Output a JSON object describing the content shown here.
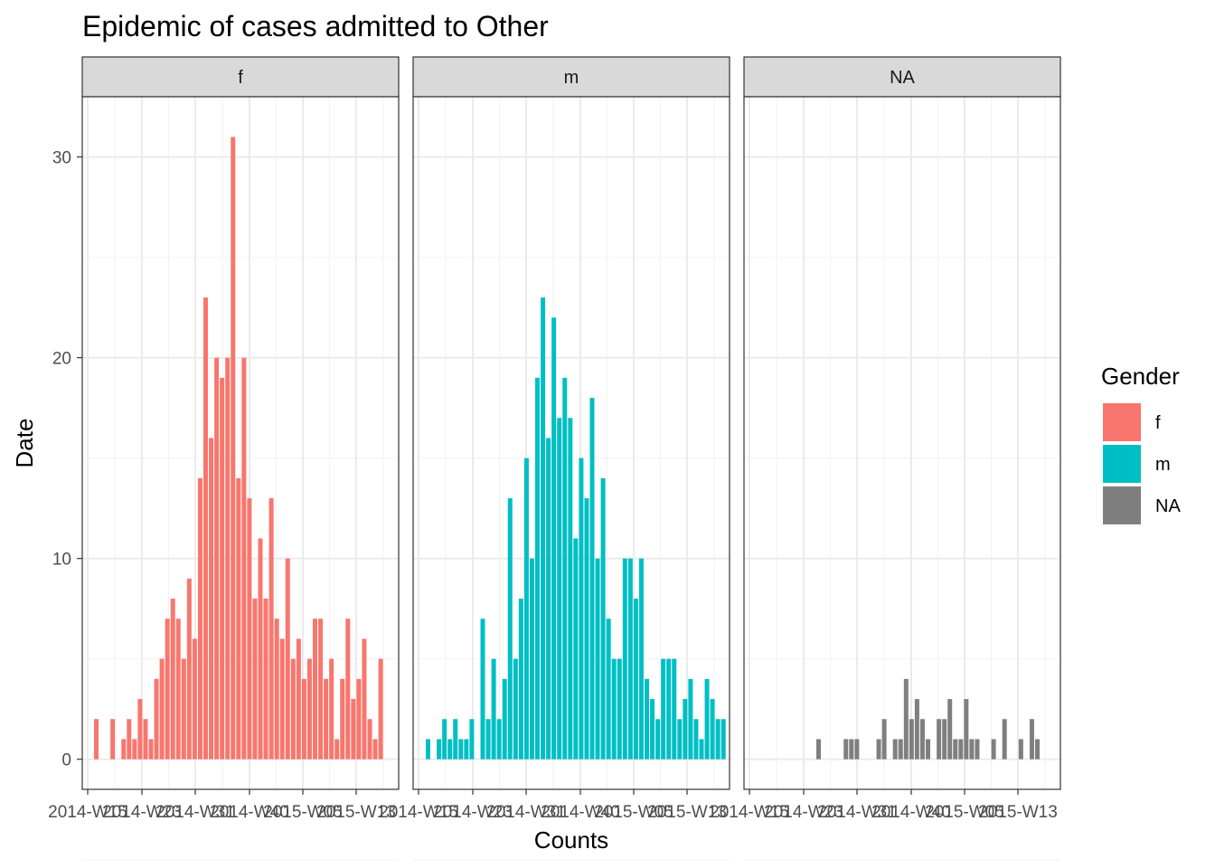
{
  "chart_data": {
    "type": "bar",
    "title": "Epidemic of cases admitted to Other",
    "xlabel": "Counts",
    "ylabel": "Date",
    "ylim": [
      -1.5,
      33
    ],
    "y_ticks": [
      0,
      10,
      20,
      30
    ],
    "x_tick_labels": [
      "2014-W15",
      "2014-W23",
      "2014-W31",
      "2014-W40",
      "2015-W05",
      "2015-W13"
    ],
    "grid": true,
    "facets": [
      "f",
      "m",
      "NA"
    ],
    "legend": {
      "title": "Gender",
      "position": "right",
      "items": [
        {
          "label": "f",
          "color": "#F8766D"
        },
        {
          "label": "m",
          "color": "#00BFC4"
        },
        {
          "label": "NA",
          "color": "#7F7F7F"
        }
      ]
    },
    "series": [
      {
        "name": "f",
        "color": "#F8766D",
        "values": [
          2,
          0,
          0,
          2,
          0,
          1,
          2,
          1,
          3,
          2,
          1,
          4,
          5,
          7,
          8,
          7,
          5,
          9,
          6,
          14,
          23,
          16,
          20,
          19,
          20,
          31,
          14,
          20,
          13,
          8,
          11,
          8,
          13,
          7,
          6,
          10,
          5,
          6,
          4,
          5,
          7,
          7,
          4,
          5,
          1,
          4,
          7,
          3,
          4,
          6,
          2,
          1,
          5
        ]
      },
      {
        "name": "m",
        "color": "#00BFC4",
        "values": [
          1,
          0,
          1,
          2,
          1,
          2,
          1,
          1,
          2,
          0,
          7,
          2,
          5,
          2,
          4,
          13,
          5,
          8,
          15,
          10,
          19,
          23,
          16,
          22,
          17,
          19,
          17,
          11,
          15,
          13,
          18,
          10,
          14,
          7,
          5,
          5,
          10,
          10,
          8,
          10,
          4,
          3,
          2,
          5,
          5,
          5,
          2,
          3,
          4,
          2,
          1,
          4,
          3,
          2,
          2
        ]
      },
      {
        "name": "NA",
        "color": "#7F7F7F",
        "values": [
          1,
          0,
          0,
          0,
          0,
          1,
          1,
          1,
          0,
          0,
          0,
          1,
          2,
          0,
          1,
          1,
          4,
          2,
          3,
          2,
          1,
          0,
          2,
          2,
          3,
          1,
          1,
          3,
          1,
          1,
          0,
          0,
          1,
          0,
          2,
          0,
          0,
          1,
          0,
          2,
          1
        ]
      }
    ]
  }
}
